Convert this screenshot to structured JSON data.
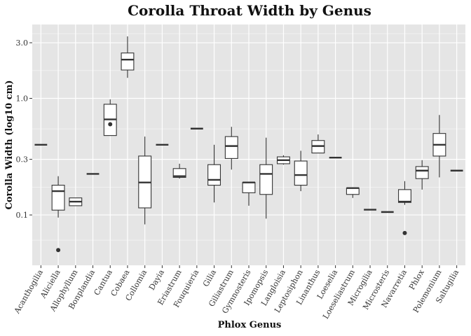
{
  "chart_data": {
    "type": "box",
    "title": "Corolla Throat Width by Genus",
    "xlabel": "Phlox Genus",
    "ylabel": "Corolla Width (log10 cm)",
    "y_scale": "log10",
    "ylim": [
      0.037,
      4.3
    ],
    "yticks": [
      0.1,
      0.3,
      1.0,
      3.0
    ],
    "ytick_labels": [
      "0.1",
      "0.3",
      "1.0",
      "3.0"
    ],
    "grid": true,
    "colors": {
      "panel": "#e5e5e5",
      "grid": "#ffffff",
      "box_fill": "#ffffff",
      "box_line": "#333333"
    },
    "categories": [
      "Acanthogilia",
      "Aliciella",
      "Allophyllum",
      "Bonplandia",
      "Cantua",
      "Cobaea",
      "Collomia",
      "Dayia",
      "Eriastrum",
      "Fouquieria",
      "Gilia",
      "Giliastrum",
      "Gymnosteris",
      "Ipomopsis",
      "Langloisia",
      "Leptosiphon",
      "Linanthus",
      "Loeselia",
      "Loeseliastrum",
      "Microgilia",
      "Microsteris",
      "Navarretia",
      "Phlox",
      "Polemonium",
      "Saltugilia"
    ],
    "boxes": [
      {
        "min": 0.4,
        "q1": 0.4,
        "median": 0.4,
        "q3": 0.4,
        "max": 0.4,
        "outliers": []
      },
      {
        "min": 0.095,
        "q1": 0.11,
        "median": 0.16,
        "q3": 0.18,
        "max": 0.215,
        "outliers": [
          0.05
        ]
      },
      {
        "min": 0.12,
        "q1": 0.12,
        "median": 0.13,
        "q3": 0.14,
        "max": 0.14,
        "outliers": []
      },
      {
        "min": 0.225,
        "q1": 0.225,
        "median": 0.225,
        "q3": 0.225,
        "max": 0.225,
        "outliers": []
      },
      {
        "min": 0.48,
        "q1": 0.48,
        "median": 0.66,
        "q3": 0.89,
        "max": 0.98,
        "outliers": [
          0.6
        ]
      },
      {
        "min": 1.5,
        "q1": 1.75,
        "median": 2.15,
        "q3": 2.45,
        "max": 3.4,
        "outliers": []
      },
      {
        "min": 0.083,
        "q1": 0.115,
        "median": 0.19,
        "q3": 0.32,
        "max": 0.47,
        "outliers": []
      },
      {
        "min": 0.4,
        "q1": 0.4,
        "median": 0.4,
        "q3": 0.4,
        "max": 0.4,
        "outliers": []
      },
      {
        "min": 0.205,
        "q1": 0.21,
        "median": 0.215,
        "q3": 0.25,
        "max": 0.275,
        "outliers": []
      },
      {
        "min": 0.55,
        "q1": 0.55,
        "median": 0.55,
        "q3": 0.55,
        "max": 0.55,
        "outliers": []
      },
      {
        "min": 0.128,
        "q1": 0.18,
        "median": 0.2,
        "q3": 0.27,
        "max": 0.4,
        "outliers": []
      },
      {
        "min": 0.245,
        "q1": 0.305,
        "median": 0.39,
        "q3": 0.47,
        "max": 0.57,
        "outliers": []
      },
      {
        "min": 0.12,
        "q1": 0.155,
        "median": 0.19,
        "q3": 0.19,
        "max": 0.19,
        "outliers": []
      },
      {
        "min": 0.093,
        "q1": 0.15,
        "median": 0.225,
        "q3": 0.27,
        "max": 0.46,
        "outliers": []
      },
      {
        "min": 0.27,
        "q1": 0.275,
        "median": 0.295,
        "q3": 0.315,
        "max": 0.325,
        "outliers": []
      },
      {
        "min": 0.16,
        "q1": 0.18,
        "median": 0.22,
        "q3": 0.29,
        "max": 0.355,
        "outliers": []
      },
      {
        "min": 0.34,
        "q1": 0.34,
        "median": 0.39,
        "q3": 0.435,
        "max": 0.49,
        "outliers": []
      },
      {
        "min": 0.31,
        "q1": 0.31,
        "median": 0.31,
        "q3": 0.31,
        "max": 0.31,
        "outliers": []
      },
      {
        "min": 0.14,
        "q1": 0.15,
        "median": 0.17,
        "q3": 0.17,
        "max": 0.17,
        "outliers": []
      },
      {
        "min": 0.111,
        "q1": 0.111,
        "median": 0.111,
        "q3": 0.111,
        "max": 0.111,
        "outliers": []
      },
      {
        "min": 0.106,
        "q1": 0.106,
        "median": 0.106,
        "q3": 0.106,
        "max": 0.106,
        "outliers": []
      },
      {
        "min": 0.122,
        "q1": 0.128,
        "median": 0.13,
        "q3": 0.165,
        "max": 0.195,
        "outliers": [
          0.07
        ]
      },
      {
        "min": 0.165,
        "q1": 0.205,
        "median": 0.24,
        "q3": 0.26,
        "max": 0.295,
        "outliers": []
      },
      {
        "min": 0.21,
        "q1": 0.32,
        "median": 0.4,
        "q3": 0.5,
        "max": 0.72,
        "outliers": []
      },
      {
        "min": 0.24,
        "q1": 0.24,
        "median": 0.24,
        "q3": 0.24,
        "max": 0.24,
        "outliers": []
      }
    ]
  }
}
